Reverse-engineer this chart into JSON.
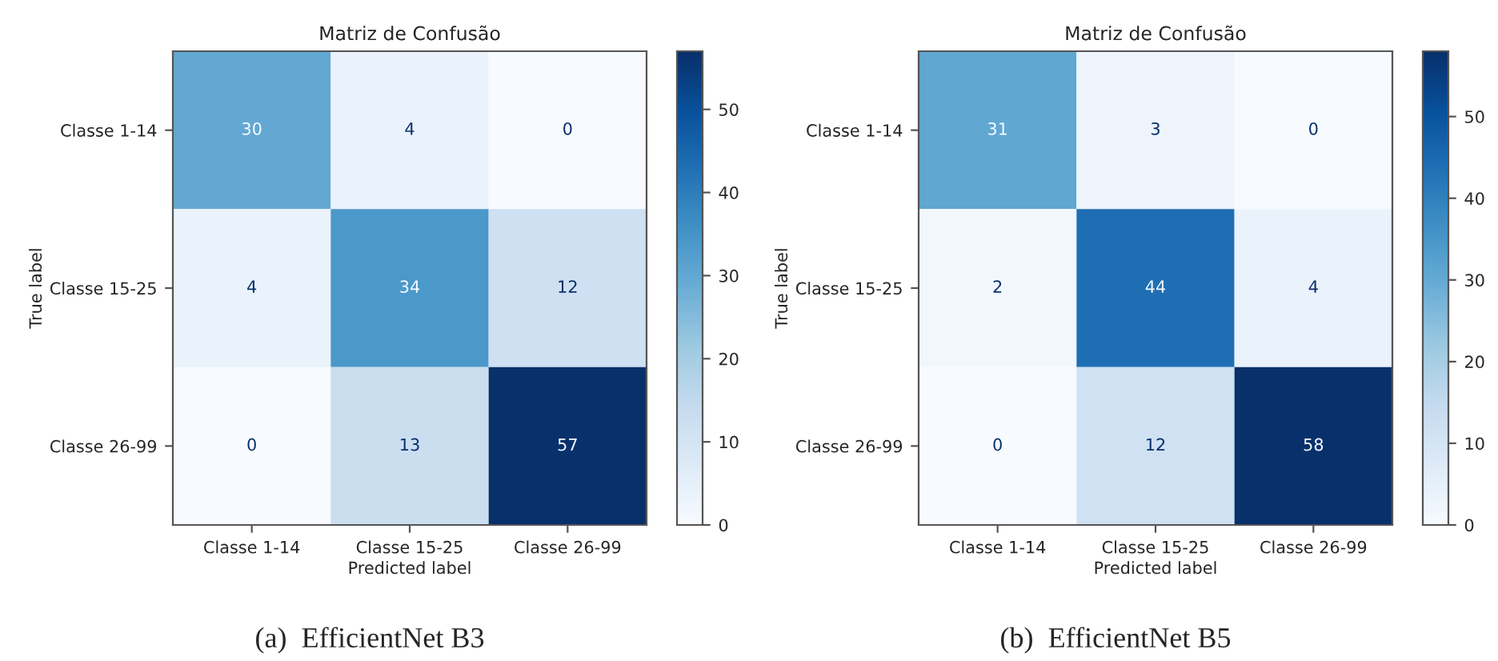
{
  "chart_data": [
    {
      "type": "heatmap",
      "title": "Matriz de Confusão",
      "xlabel": "Predicted label",
      "ylabel": "True label",
      "categories": [
        "Classe 1-14",
        "Classe 15-25",
        "Classe 26-99"
      ],
      "y_categories": [
        "Classe 1-14",
        "Classe 15-25",
        "Classe 26-99"
      ],
      "cells": [
        [
          30,
          4,
          0
        ],
        [
          4,
          34,
          12
        ],
        [
          0,
          13,
          57
        ]
      ],
      "data_labels": true,
      "clim": [
        0,
        57
      ],
      "cticks": [
        0,
        10,
        20,
        30,
        40,
        50
      ],
      "annotations": [
        "(a)  EfficientNet B3"
      ]
    },
    {
      "type": "heatmap",
      "title": "Matriz de Confusão",
      "xlabel": "Predicted label",
      "ylabel": "True label",
      "categories": [
        "Classe 1-14",
        "Classe 15-25",
        "Classe 26-99"
      ],
      "y_categories": [
        "Classe 1-14",
        "Classe 15-25",
        "Classe 26-99"
      ],
      "cells": [
        [
          31,
          3,
          0
        ],
        [
          2,
          44,
          4
        ],
        [
          0,
          12,
          58
        ]
      ],
      "data_labels": true,
      "clim": [
        0,
        58
      ],
      "cticks": [
        0,
        10,
        20,
        30,
        40,
        50
      ],
      "annotations": [
        "(b)  EfficientNet B5"
      ]
    }
  ]
}
